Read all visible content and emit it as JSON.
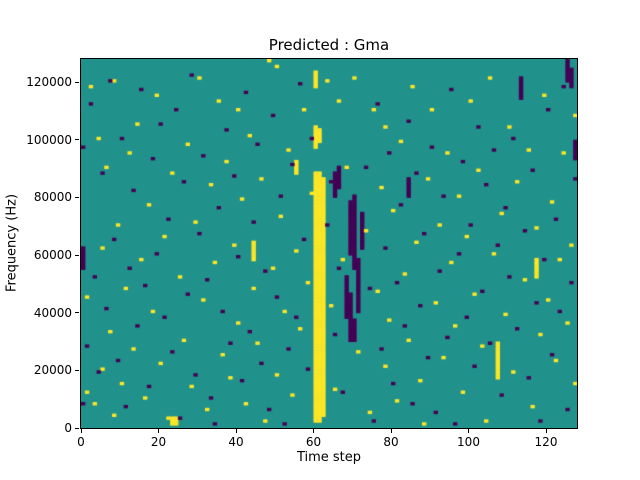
{
  "chart_data": {
    "type": "heatmap",
    "title": "Predicted : Gma",
    "xlabel": "Time step",
    "ylabel": "Frequency (Hz)",
    "x_range": [
      0,
      128
    ],
    "y_range": [
      0,
      128000
    ],
    "x_ticks": [
      0,
      20,
      40,
      60,
      80,
      100,
      120
    ],
    "y_ticks": [
      0,
      20000,
      40000,
      60000,
      80000,
      100000,
      120000
    ],
    "bin_hz": 1000,
    "grid": false,
    "legend": "none",
    "colors": {
      "background": "#21918c",
      "high": "#fde725",
      "low": "#440154",
      "axis": "#000000",
      "figure_bg": "#ffffff"
    },
    "value_meaning": {
      "background": "mid value (viridis teal)",
      "high": "high value (viridis yellow)",
      "low": "low value (viridis dark purple)"
    },
    "yellow_runs": [
      {
        "t": 60,
        "f0": 2,
        "f1": 88
      },
      {
        "t": 61,
        "f0": 2,
        "f1": 88
      },
      {
        "t": 62,
        "f0": 4,
        "f1": 86
      },
      {
        "t": 60,
        "f0": 97,
        "f1": 104
      },
      {
        "t": 61,
        "f0": 99,
        "f1": 103
      },
      {
        "t": 60,
        "f0": 118,
        "f1": 123
      },
      {
        "t": 107,
        "f0": 17,
        "f1": 29
      },
      {
        "t": 23,
        "f0": 1,
        "f1": 3
      },
      {
        "t": 24,
        "f0": 1,
        "f1": 3
      },
      {
        "t": 44,
        "f0": 58,
        "f1": 64
      },
      {
        "t": 117,
        "f0": 52,
        "f1": 58
      },
      {
        "t": 55,
        "f0": 88,
        "f1": 92
      }
    ],
    "purple_runs": [
      {
        "t": 68,
        "f0": 38,
        "f1": 52
      },
      {
        "t": 69,
        "f0": 30,
        "f1": 46
      },
      {
        "t": 69,
        "f0": 60,
        "f1": 78
      },
      {
        "t": 70,
        "f0": 55,
        "f1": 80
      },
      {
        "t": 71,
        "f0": 40,
        "f1": 58
      },
      {
        "t": 72,
        "f0": 62,
        "f1": 74
      },
      {
        "t": 70,
        "f0": 30,
        "f1": 37
      },
      {
        "t": 65,
        "f0": 80,
        "f1": 88
      },
      {
        "t": 66,
        "f0": 83,
        "f1": 90
      },
      {
        "t": 113,
        "f0": 114,
        "f1": 121
      },
      {
        "t": 0,
        "f0": 55,
        "f1": 62
      },
      {
        "t": 125,
        "f0": 120,
        "f1": 127
      },
      {
        "t": 126,
        "f0": 118,
        "f1": 124
      },
      {
        "t": 127,
        "f0": 93,
        "f1": 99
      },
      {
        "t": 84,
        "f0": 80,
        "f1": 86
      }
    ],
    "yellow_cells": [
      [
        1,
        45
      ],
      [
        1,
        12
      ],
      [
        2,
        118
      ],
      [
        3,
        8
      ],
      [
        4,
        100
      ],
      [
        5,
        62
      ],
      [
        5,
        20
      ],
      [
        6,
        90
      ],
      [
        7,
        33
      ],
      [
        8,
        120
      ],
      [
        8,
        4
      ],
      [
        9,
        70
      ],
      [
        10,
        15
      ],
      [
        11,
        48
      ],
      [
        12,
        95
      ],
      [
        13,
        27
      ],
      [
        14,
        105
      ],
      [
        15,
        58
      ],
      [
        16,
        10
      ],
      [
        17,
        77
      ],
      [
        18,
        40
      ],
      [
        19,
        115
      ],
      [
        20,
        22
      ],
      [
        21,
        66
      ],
      [
        22,
        3
      ],
      [
        23,
        88
      ],
      [
        25,
        52
      ],
      [
        26,
        30
      ],
      [
        27,
        98
      ],
      [
        28,
        14
      ],
      [
        29,
        71
      ],
      [
        30,
        121
      ],
      [
        31,
        44
      ],
      [
        32,
        6
      ],
      [
        33,
        84
      ],
      [
        34,
        57
      ],
      [
        35,
        113
      ],
      [
        36,
        25
      ],
      [
        37,
        92
      ],
      [
        38,
        17
      ],
      [
        39,
        63
      ],
      [
        40,
        110
      ],
      [
        40,
        36
      ],
      [
        41,
        79
      ],
      [
        42,
        8
      ],
      [
        43,
        101
      ],
      [
        44,
        48
      ],
      [
        45,
        29
      ],
      [
        46,
        86
      ],
      [
        47,
        2
      ],
      [
        48,
        127
      ],
      [
        49,
        55
      ],
      [
        50,
        125
      ],
      [
        50,
        18
      ],
      [
        51,
        73
      ],
      [
        52,
        40
      ],
      [
        53,
        96
      ],
      [
        54,
        11
      ],
      [
        55,
        61
      ],
      [
        56,
        34
      ],
      [
        57,
        110
      ],
      [
        58,
        50
      ],
      [
        59,
        81
      ],
      [
        63,
        120
      ],
      [
        64,
        42
      ],
      [
        65,
        13
      ],
      [
        66,
        113
      ],
      [
        67,
        58
      ],
      [
        68,
        90
      ],
      [
        70,
        121
      ],
      [
        71,
        26
      ],
      [
        73,
        68
      ],
      [
        74,
        5
      ],
      [
        75,
        110
      ],
      [
        76,
        47
      ],
      [
        77,
        83
      ],
      [
        78,
        104
      ],
      [
        78,
        21
      ],
      [
        79,
        37
      ],
      [
        80,
        75
      ],
      [
        81,
        9
      ],
      [
        82,
        99
      ],
      [
        83,
        53
      ],
      [
        84,
        30
      ],
      [
        85,
        118
      ],
      [
        86,
        64
      ],
      [
        87,
        16
      ],
      [
        88,
        1
      ],
      [
        89,
        86
      ],
      [
        90,
        110
      ],
      [
        91,
        43
      ],
      [
        92,
        70
      ],
      [
        93,
        24
      ],
      [
        94,
        95
      ],
      [
        95,
        57
      ],
      [
        96,
        35
      ],
      [
        97,
        80
      ],
      [
        98,
        12
      ],
      [
        99,
        66
      ],
      [
        100,
        113
      ],
      [
        101,
        46
      ],
      [
        102,
        89
      ],
      [
        103,
        28
      ],
      [
        104,
        2
      ],
      [
        105,
        121
      ],
      [
        106,
        60
      ],
      [
        108,
        74
      ],
      [
        109,
        39
      ],
      [
        110,
        104
      ],
      [
        111,
        19
      ],
      [
        112,
        85
      ],
      [
        114,
        51
      ],
      [
        115,
        96
      ],
      [
        116,
        7
      ],
      [
        117,
        69
      ],
      [
        118,
        32
      ],
      [
        119,
        115
      ],
      [
        120,
        44
      ],
      [
        121,
        78
      ],
      [
        122,
        23
      ],
      [
        123,
        58
      ],
      [
        124,
        95
      ],
      [
        125,
        36
      ],
      [
        126,
        63
      ],
      [
        127,
        108
      ],
      [
        127,
        15
      ]
    ],
    "purple_cells": [
      [
        0,
        8
      ],
      [
        0,
        97
      ],
      [
        1,
        28
      ],
      [
        2,
        112
      ],
      [
        3,
        52
      ],
      [
        4,
        19
      ],
      [
        5,
        88
      ],
      [
        6,
        41
      ],
      [
        7,
        120
      ],
      [
        8,
        65
      ],
      [
        9,
        23
      ],
      [
        10,
        100
      ],
      [
        11,
        7
      ],
      [
        12,
        55
      ],
      [
        13,
        82
      ],
      [
        14,
        35
      ],
      [
        15,
        117
      ],
      [
        16,
        49
      ],
      [
        17,
        14
      ],
      [
        18,
        93
      ],
      [
        19,
        60
      ],
      [
        20,
        105
      ],
      [
        21,
        38
      ],
      [
        22,
        72
      ],
      [
        23,
        26
      ],
      [
        24,
        110
      ],
      [
        25,
        3
      ],
      [
        26,
        85
      ],
      [
        27,
        46
      ],
      [
        28,
        122
      ],
      [
        29,
        18
      ],
      [
        30,
        67
      ],
      [
        31,
        94
      ],
      [
        32,
        51
      ],
      [
        33,
        10
      ],
      [
        34,
        1
      ],
      [
        35,
        76
      ],
      [
        36,
        40
      ],
      [
        37,
        103
      ],
      [
        38,
        29
      ],
      [
        39,
        87
      ],
      [
        40,
        59
      ],
      [
        41,
        16
      ],
      [
        42,
        116
      ],
      [
        43,
        33
      ],
      [
        44,
        71
      ],
      [
        45,
        98
      ],
      [
        46,
        22
      ],
      [
        47,
        54
      ],
      [
        48,
        6
      ],
      [
        49,
        108
      ],
      [
        50,
        45
      ],
      [
        51,
        80
      ],
      [
        52,
        1
      ],
      [
        53,
        27
      ],
      [
        54,
        91
      ],
      [
        55,
        38
      ],
      [
        56,
        119
      ],
      [
        57,
        65
      ],
      [
        58,
        20
      ],
      [
        59,
        100
      ],
      [
        63,
        70
      ],
      [
        64,
        85
      ],
      [
        65,
        32
      ],
      [
        66,
        55
      ],
      [
        67,
        12
      ],
      [
        73,
        90
      ],
      [
        74,
        48
      ],
      [
        75,
        2
      ],
      [
        76,
        112
      ],
      [
        77,
        27
      ],
      [
        78,
        62
      ],
      [
        79,
        95
      ],
      [
        80,
        15
      ],
      [
        81,
        50
      ],
      [
        82,
        77
      ],
      [
        83,
        35
      ],
      [
        84,
        106
      ],
      [
        85,
        8
      ],
      [
        86,
        88
      ],
      [
        87,
        42
      ],
      [
        88,
        67
      ],
      [
        89,
        24
      ],
      [
        90,
        97
      ],
      [
        91,
        5
      ],
      [
        92,
        54
      ],
      [
        93,
        80
      ],
      [
        94,
        31
      ],
      [
        95,
        117
      ],
      [
        96,
        1
      ],
      [
        97,
        60
      ],
      [
        98,
        92
      ],
      [
        99,
        38
      ],
      [
        100,
        70
      ],
      [
        101,
        21
      ],
      [
        102,
        104
      ],
      [
        103,
        47
      ],
      [
        104,
        84
      ],
      [
        105,
        29
      ],
      [
        106,
        96
      ],
      [
        107,
        63
      ],
      [
        108,
        11
      ],
      [
        109,
        76
      ],
      [
        110,
        52
      ],
      [
        111,
        100
      ],
      [
        112,
        34
      ],
      [
        114,
        68
      ],
      [
        115,
        17
      ],
      [
        116,
        89
      ],
      [
        117,
        43
      ],
      [
        118,
        2
      ],
      [
        119,
        58
      ],
      [
        120,
        110
      ],
      [
        121,
        25
      ],
      [
        122,
        72
      ],
      [
        123,
        40
      ],
      [
        124,
        118
      ],
      [
        125,
        6
      ],
      [
        126,
        50
      ],
      [
        127,
        86
      ]
    ]
  }
}
